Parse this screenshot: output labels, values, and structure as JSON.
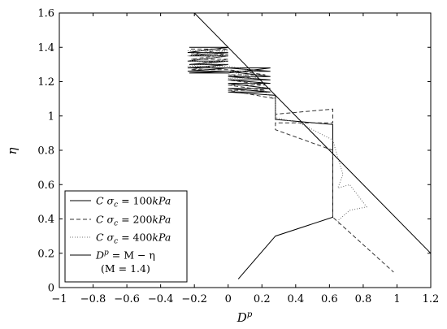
{
  "chart_data": {
    "type": "line",
    "title": "",
    "xlabel": "D",
    "xlabel_sup": "p",
    "ylabel": "η",
    "xlim": [
      -1,
      1.2
    ],
    "ylim": [
      0,
      1.6
    ],
    "xticks": [
      -1,
      -0.8,
      -0.6,
      -0.4,
      -0.2,
      0,
      0.2,
      0.4,
      0.6,
      0.8,
      1,
      1.2
    ],
    "yticks": [
      0,
      0.2,
      0.4,
      0.6,
      0.8,
      1,
      1.2,
      1.4,
      1.6
    ],
    "xtick_labels": [
      "−1",
      "−0.8",
      "−0.6",
      "−0.4",
      "−0.2",
      "0",
      "0.2",
      "0.4",
      "0.6",
      "0.8",
      "1",
      "1.2"
    ],
    "ytick_labels": [
      "0",
      "0.2",
      "0.4",
      "0.6",
      "0.8",
      "1",
      "1.2",
      "1.4",
      "1.6"
    ],
    "grid": false,
    "legend_position": "bottom-left",
    "series": [
      {
        "name": "C σc = 100kPa",
        "style": "solid",
        "color": "#000000",
        "x": [
          -0.23,
          0.0,
          -0.24,
          0.0,
          -0.23,
          0.0,
          -0.24,
          0.0,
          -0.23,
          0.0,
          -0.24,
          0.0,
          -0.24,
          0.0,
          -0.23,
          0.0,
          0.25,
          0.0,
          0.25,
          0.0,
          0.25,
          0.0,
          0.25,
          0.0,
          0.25,
          0.0,
          0.25,
          0.0,
          0.25,
          0.0,
          0.28,
          0.28,
          0.62,
          0.62,
          0.28,
          0.06
        ],
        "y": [
          1.4,
          1.4,
          1.37,
          1.37,
          1.35,
          1.35,
          1.32,
          1.32,
          1.3,
          1.3,
          1.28,
          1.28,
          1.26,
          1.26,
          1.25,
          1.25,
          1.28,
          1.28,
          1.26,
          1.26,
          1.23,
          1.23,
          1.21,
          1.21,
          1.19,
          1.19,
          1.16,
          1.16,
          1.14,
          1.14,
          1.12,
          0.98,
          0.95,
          0.41,
          0.3,
          0.05
        ]
      },
      {
        "name": "C σc = 200kPa",
        "style": "dashed",
        "color": "#333333",
        "x": [
          -0.22,
          0.0,
          -0.22,
          0.0,
          -0.22,
          0.0,
          -0.22,
          0.0,
          -0.22,
          0.0,
          0.22,
          0.0,
          0.22,
          0.0,
          0.22,
          0.0,
          0.22,
          0.0,
          0.28,
          0.28,
          0.62,
          0.62,
          0.62,
          0.28,
          0.28,
          0.62,
          0.62,
          0.98
        ],
        "y": [
          1.39,
          1.39,
          1.36,
          1.36,
          1.33,
          1.33,
          1.3,
          1.3,
          1.27,
          1.27,
          1.24,
          1.24,
          1.21,
          1.21,
          1.18,
          1.18,
          1.15,
          1.15,
          1.1,
          1.01,
          1.04,
          1.0,
          0.96,
          0.96,
          0.92,
          0.8,
          0.41,
          0.09
        ]
      },
      {
        "name": "C σc = 400kPa",
        "style": "dotted",
        "color": "#777777",
        "x": [
          -0.24,
          0.0,
          -0.24,
          0.0,
          -0.24,
          0.0,
          -0.24,
          0.0,
          0.18,
          0.0,
          0.18,
          0.0,
          0.18,
          0.24,
          0.28,
          0.28,
          0.42,
          0.62,
          0.64,
          0.68,
          0.65,
          0.72,
          0.82,
          0.72,
          0.65,
          0.66
        ],
        "y": [
          1.38,
          1.38,
          1.35,
          1.35,
          1.32,
          1.32,
          1.29,
          1.29,
          1.26,
          1.26,
          1.22,
          1.22,
          1.18,
          1.12,
          1.1,
          0.99,
          0.96,
          0.86,
          0.79,
          0.66,
          0.58,
          0.6,
          0.47,
          0.45,
          0.39,
          0.36
        ]
      },
      {
        "name": "Dp = M − η",
        "style": "solid",
        "color": "#000000",
        "x": [
          -0.2,
          1.2
        ],
        "y": [
          1.6,
          0.2
        ]
      }
    ]
  },
  "legend": {
    "entries": [
      {
        "prefix": "C",
        "sym": "σ",
        "sub": "c",
        "rest": " = 100",
        "unit": "kPa"
      },
      {
        "prefix": "C",
        "sym": "σ",
        "sub": "c",
        "rest": " = 200",
        "unit": "kPa"
      },
      {
        "prefix": "C",
        "sym": "σ",
        "sub": "c",
        "rest": " = 400",
        "unit": "kPa"
      },
      {
        "prefix": "D",
        "sup": "p",
        "rest": " = M − η"
      }
    ],
    "note": "(M = 1.4)"
  }
}
